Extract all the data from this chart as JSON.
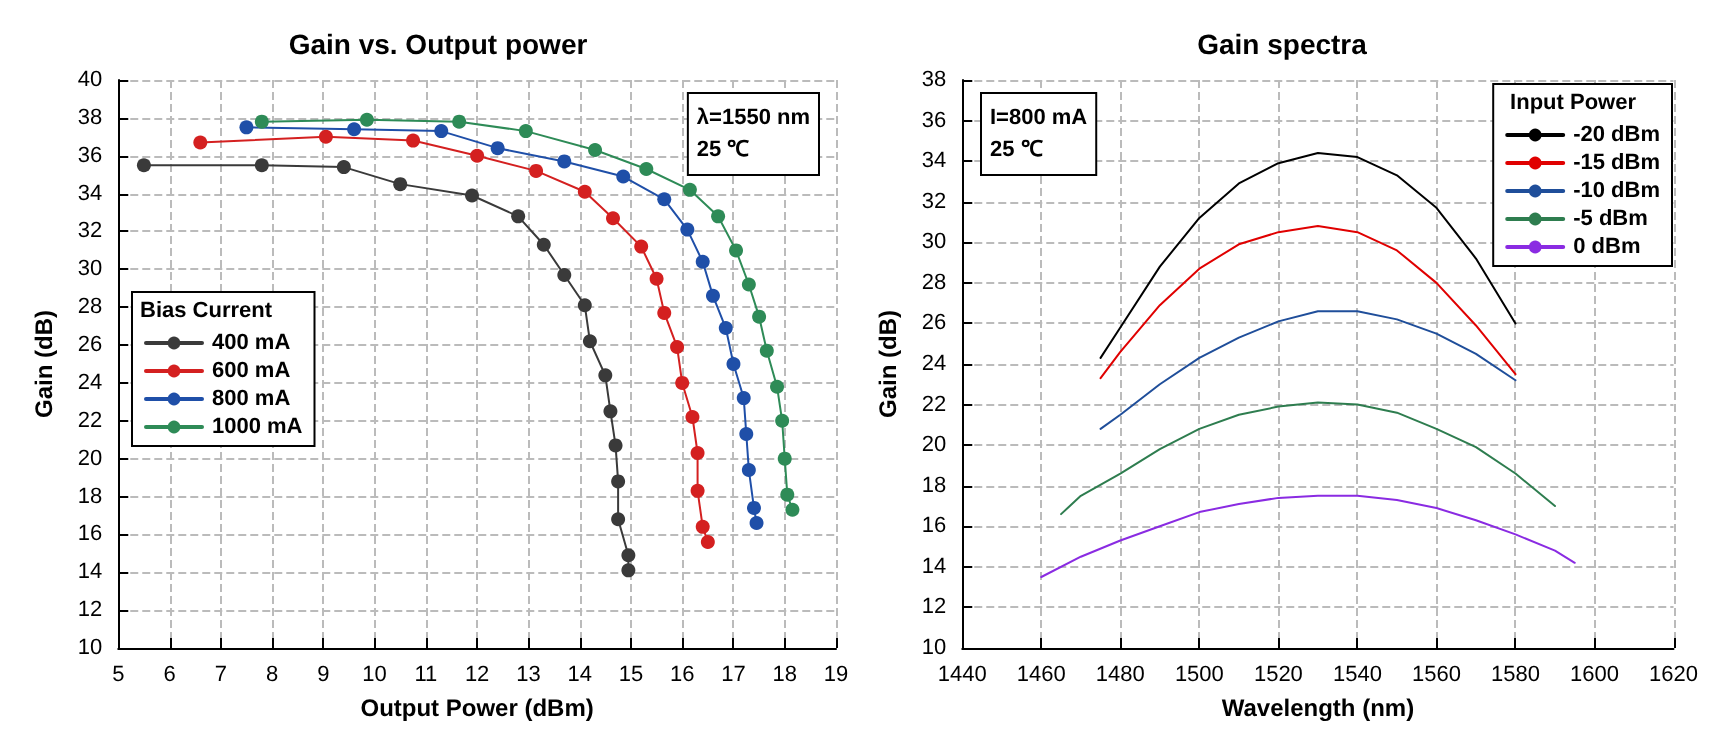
{
  "chart_data": [
    {
      "type": "line",
      "title": "Gain vs. Output power",
      "xlabel": "Output Power (dBm)",
      "ylabel": "Gain (dB)",
      "legend_title": "Bias Current",
      "annotations": [
        "λ=1550 nm\n25 ℃"
      ],
      "xlim": [
        5,
        19
      ],
      "xticks": [
        5,
        6,
        7,
        8,
        9,
        10,
        11,
        12,
        13,
        14,
        15,
        16,
        17,
        18,
        19
      ],
      "ylim": [
        10,
        40
      ],
      "yticks": [
        10,
        12,
        14,
        16,
        18,
        20,
        22,
        24,
        26,
        28,
        30,
        32,
        34,
        36,
        38,
        40
      ],
      "grid": true,
      "legend": "left",
      "marker": "circle",
      "line_style": "solid",
      "series": [
        {
          "name": "400 mA",
          "color": "#3a3a3a",
          "x": [
            5.5,
            7.8,
            9.4,
            10.5,
            11.9,
            12.8,
            13.3,
            13.7,
            14.1,
            14.2,
            14.5,
            14.6,
            14.7,
            14.75,
            14.75,
            14.95,
            14.95
          ],
          "values": [
            35.5,
            35.5,
            35.4,
            34.5,
            33.9,
            32.8,
            31.3,
            29.7,
            28.1,
            26.2,
            24.4,
            22.5,
            20.7,
            18.8,
            16.8,
            14.9,
            14.1
          ]
        },
        {
          "name": "600 mA",
          "color": "#d42020",
          "x": [
            6.6,
            9.05,
            10.75,
            12.0,
            13.15,
            14.1,
            14.65,
            15.2,
            15.5,
            15.65,
            15.9,
            16.0,
            16.2,
            16.3,
            16.3,
            16.4,
            16.5
          ],
          "values": [
            36.7,
            37.0,
            36.8,
            36.0,
            35.2,
            34.1,
            32.7,
            31.2,
            29.5,
            27.7,
            25.9,
            24.0,
            22.2,
            20.3,
            18.3,
            16.4,
            15.6
          ]
        },
        {
          "name": "800 mA",
          "color": "#1f4fa8",
          "x": [
            7.5,
            9.6,
            11.3,
            12.4,
            13.7,
            14.85,
            15.65,
            16.1,
            16.4,
            16.6,
            16.85,
            17.0,
            17.2,
            17.25,
            17.3,
            17.4,
            17.45
          ],
          "values": [
            37.5,
            37.4,
            37.3,
            36.4,
            35.7,
            34.9,
            33.7,
            32.1,
            30.4,
            28.6,
            26.9,
            25.0,
            23.2,
            21.3,
            19.4,
            17.4,
            16.6
          ]
        },
        {
          "name": "1000 mA",
          "color": "#2e8b57",
          "x": [
            7.8,
            9.85,
            11.65,
            12.95,
            14.3,
            15.3,
            16.15,
            16.7,
            17.05,
            17.3,
            17.5,
            17.65,
            17.85,
            17.95,
            18.0,
            18.05,
            18.15
          ],
          "values": [
            37.8,
            37.9,
            37.8,
            37.3,
            36.3,
            35.3,
            34.2,
            32.8,
            31.0,
            29.2,
            27.5,
            25.7,
            23.8,
            22.0,
            20.0,
            18.1,
            17.3
          ]
        }
      ]
    },
    {
      "type": "line",
      "title": "Gain spectra",
      "xlabel": "Wavelength (nm)",
      "ylabel": "Gain (dB)",
      "legend_title": "Input Power",
      "annotations": [
        "I=800 mA\n25 ℃"
      ],
      "xlim": [
        1440,
        1620
      ],
      "xticks": [
        1440,
        1460,
        1480,
        1500,
        1520,
        1540,
        1560,
        1580,
        1600,
        1620
      ],
      "ylim": [
        10,
        38
      ],
      "yticks": [
        10,
        12,
        14,
        16,
        18,
        20,
        22,
        24,
        26,
        28,
        30,
        32,
        34,
        36,
        38
      ],
      "grid": true,
      "legend": "top right",
      "marker": "none",
      "line_style": "solid",
      "series": [
        {
          "name": "-20 dBm",
          "color": "#000000",
          "x": [
            1475,
            1480,
            1490,
            1500,
            1510,
            1520,
            1530,
            1540,
            1550,
            1560,
            1570,
            1580
          ],
          "values": [
            24.3,
            25.8,
            28.8,
            31.2,
            32.9,
            33.9,
            34.4,
            34.2,
            33.3,
            31.7,
            29.2,
            26.0
          ]
        },
        {
          "name": "-15 dBm",
          "color": "#e00000",
          "x": [
            1475,
            1480,
            1490,
            1500,
            1510,
            1520,
            1530,
            1540,
            1550,
            1560,
            1570,
            1580
          ],
          "values": [
            23.3,
            24.6,
            26.9,
            28.7,
            29.9,
            30.5,
            30.8,
            30.5,
            29.6,
            28.0,
            25.9,
            23.5
          ]
        },
        {
          "name": "-10 dBm",
          "color": "#1f4e9a",
          "x": [
            1475,
            1480,
            1490,
            1500,
            1510,
            1520,
            1530,
            1540,
            1550,
            1560,
            1570,
            1580
          ],
          "values": [
            20.8,
            21.5,
            23.0,
            24.3,
            25.3,
            26.1,
            26.6,
            26.6,
            26.2,
            25.5,
            24.5,
            23.2
          ]
        },
        {
          "name": "-5 dBm",
          "color": "#2e7d4f",
          "x": [
            1465,
            1470,
            1480,
            1490,
            1500,
            1510,
            1520,
            1530,
            1540,
            1550,
            1560,
            1570,
            1580,
            1590
          ],
          "values": [
            16.6,
            17.5,
            18.6,
            19.8,
            20.8,
            21.5,
            21.9,
            22.1,
            22.0,
            21.6,
            20.8,
            19.9,
            18.6,
            17.0
          ]
        },
        {
          "name": "0 dBm",
          "color": "#8a2be2",
          "x": [
            1460,
            1470,
            1480,
            1490,
            1500,
            1510,
            1520,
            1530,
            1540,
            1550,
            1560,
            1570,
            1580,
            1590,
            1595
          ],
          "values": [
            13.5,
            14.5,
            15.3,
            16.0,
            16.7,
            17.1,
            17.4,
            17.5,
            17.5,
            17.3,
            16.9,
            16.3,
            15.6,
            14.8,
            14.2
          ]
        }
      ]
    }
  ]
}
